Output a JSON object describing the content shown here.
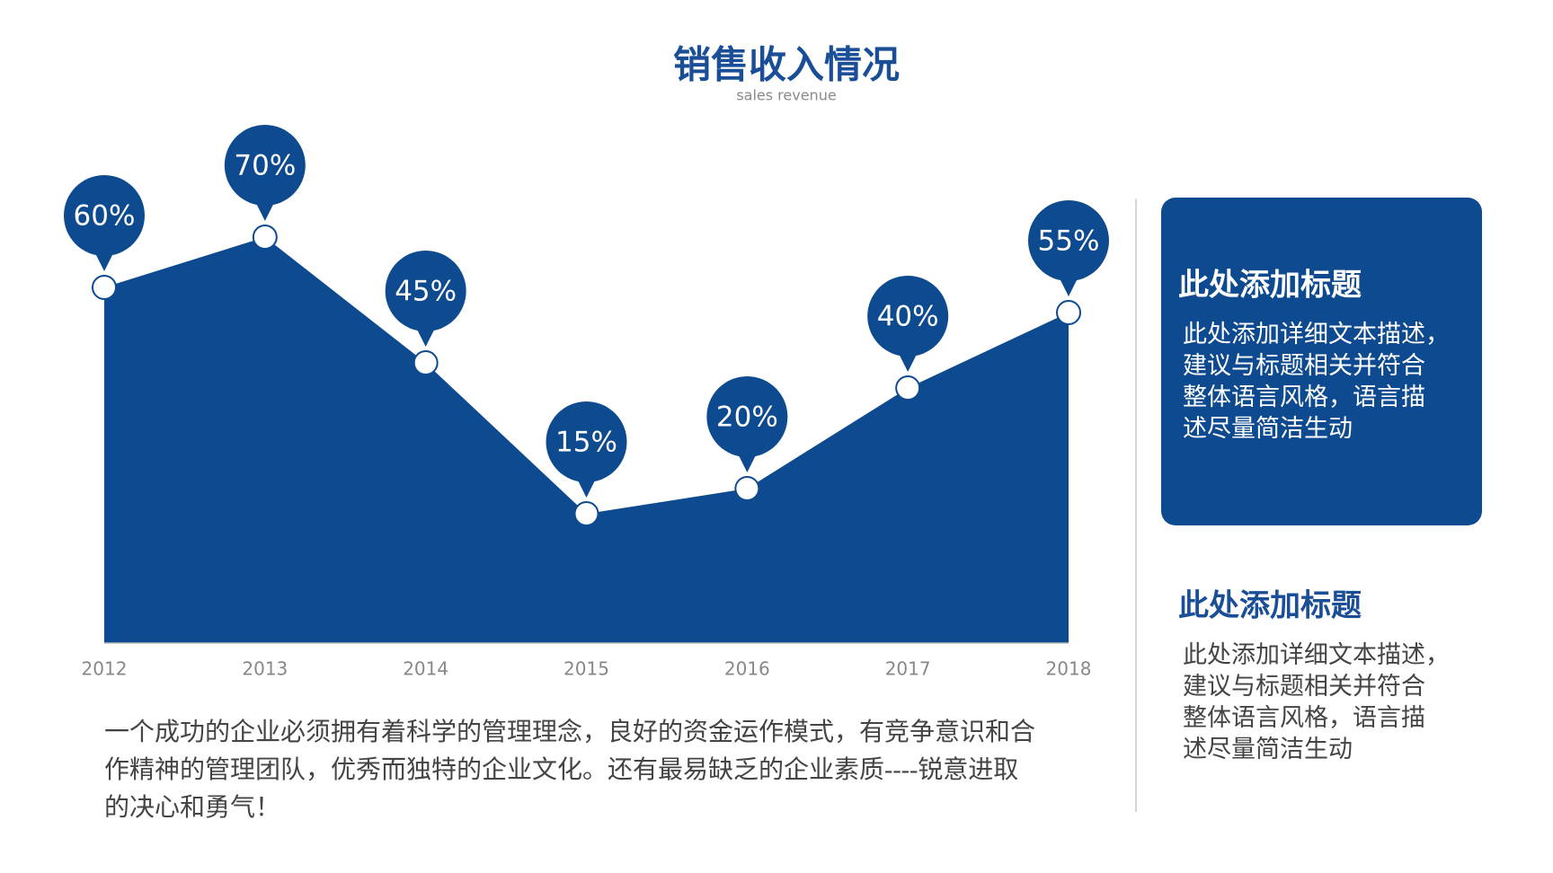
{
  "header": {
    "title": "销售收入情况",
    "subtitle": "sales revenue"
  },
  "chart_data": {
    "type": "area",
    "categories": [
      "2012",
      "2013",
      "2014",
      "2015",
      "2016",
      "2017",
      "2018"
    ],
    "values": [
      60,
      70,
      45,
      15,
      20,
      40,
      55
    ],
    "value_labels": [
      "60%",
      "70%",
      "45%",
      "15%",
      "20%",
      "40%",
      "55%"
    ],
    "color": "#0d4a8f"
  },
  "paragraph": [
    "一个成功的企业必须拥有着科学的管理理念，良好的资金运作模式，有竞争意识和合",
    "作精神的管理团队，优秀而独特的企业文化。还有最易缺乏的企业素质----锐意进取",
    "的决心和勇气！"
  ],
  "cards": [
    {
      "title": "此处添加标题",
      "lines": [
        "此处添加详细文本描述，",
        "建议与标题相关并符合",
        "整体语言风格，语言描",
        "述尽量简洁生动"
      ]
    },
    {
      "title": "此处添加标题",
      "lines": [
        "此处添加详细文本描述，",
        "建议与标题相关并符合",
        "整体语言风格，语言描",
        "述尽量简洁生动"
      ]
    }
  ]
}
